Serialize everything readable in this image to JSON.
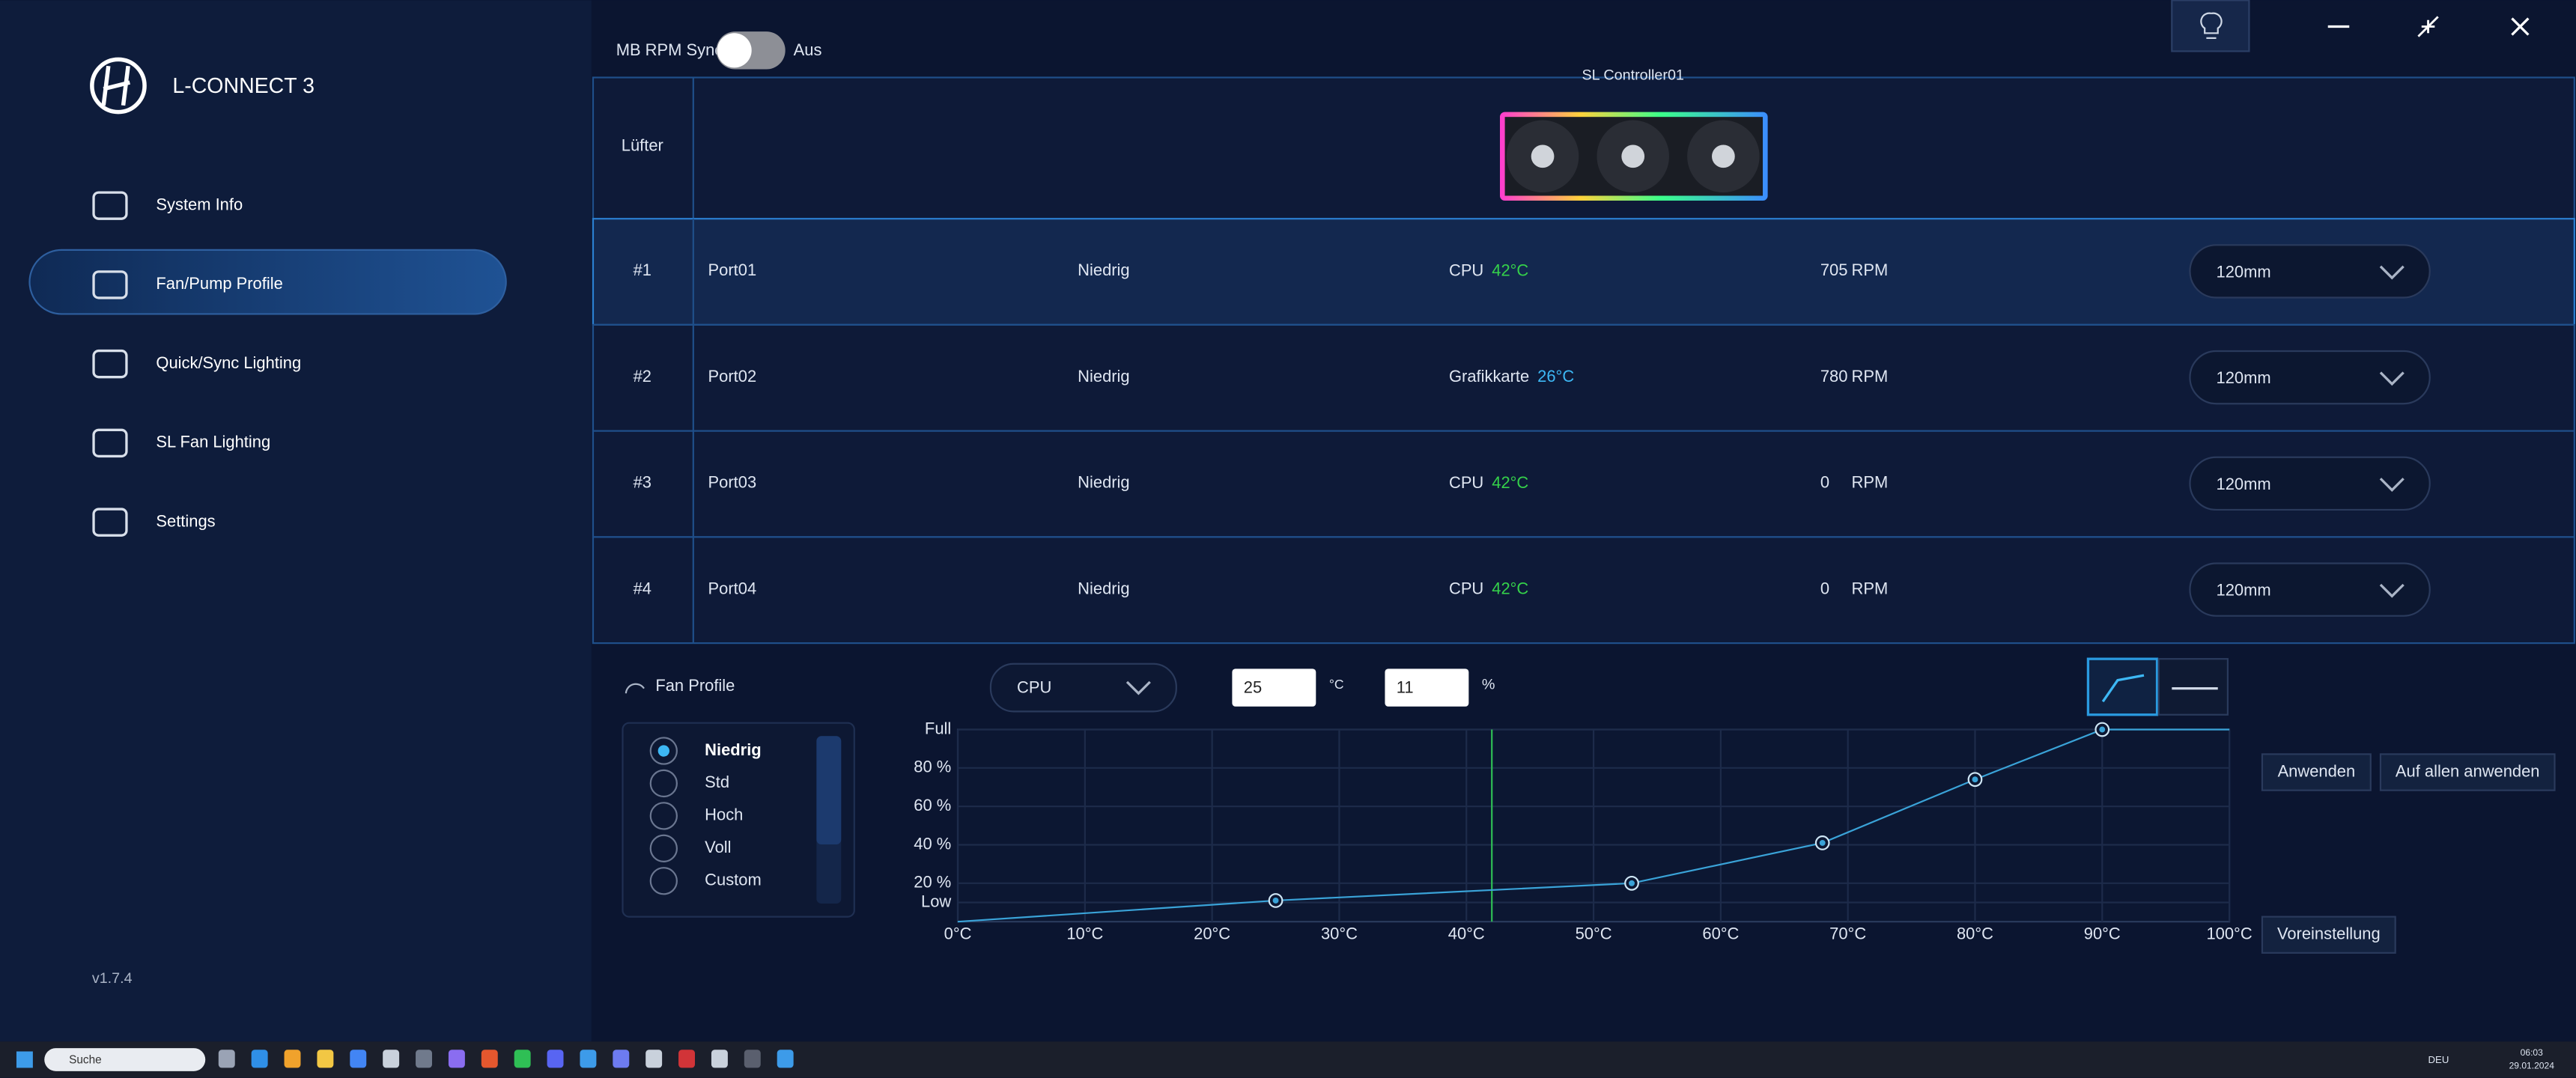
{
  "app": {
    "name": "L-CONNECT 3",
    "version": "v1.7.4"
  },
  "nav": [
    "System Info",
    "Fan/Pump Profile",
    "Quick/Sync Lighting",
    "SL Fan Lighting",
    "Settings"
  ],
  "sync": {
    "label": "MB RPM Sync",
    "state": "Aus"
  },
  "controller": "SL Controller01",
  "table": {
    "header": "Lüfter",
    "rows": [
      {
        "num": "#1",
        "port": "Port01",
        "mode": "Niedrig",
        "sensor": "CPU",
        "temp": "42°C",
        "temp_color": "#35d14a",
        "rpm": "705",
        "unit": "RPM",
        "size": "120mm"
      },
      {
        "num": "#2",
        "port": "Port02",
        "mode": "Niedrig",
        "sensor": "Grafikkarte",
        "temp": "26°C",
        "temp_color": "#3db8f5",
        "rpm": "780",
        "unit": "RPM",
        "size": "120mm"
      },
      {
        "num": "#3",
        "port": "Port03",
        "mode": "Niedrig",
        "sensor": "CPU",
        "temp": "42°C",
        "temp_color": "#35d14a",
        "rpm": "0",
        "unit": "RPM",
        "size": "120mm"
      },
      {
        "num": "#4",
        "port": "Port04",
        "mode": "Niedrig",
        "sensor": "CPU",
        "temp": "42°C",
        "temp_color": "#35d14a",
        "rpm": "0",
        "unit": "RPM",
        "size": "120mm"
      }
    ]
  },
  "profile": {
    "title": "Fan Profile",
    "options": [
      "Niedrig",
      "Std",
      "Hoch",
      "Voll",
      "Custom"
    ],
    "sensor": "CPU",
    "temp_input": "25",
    "temp_unit": "°C",
    "duty_input": "11",
    "duty_unit": "%",
    "buttons": [
      "Anwenden",
      "Auf allen anwenden",
      "Voreinstellung"
    ]
  },
  "chart_data": {
    "type": "line",
    "x": [
      0,
      25,
      53,
      68,
      80,
      90,
      100
    ],
    "values": [
      0,
      11,
      20,
      41,
      74,
      100,
      100
    ],
    "color": "#3aa3d8",
    "current_temp": 42,
    "xlim": [
      0,
      100
    ],
    "ylim": [
      0,
      100
    ],
    "xticks": [
      {
        "value": 0,
        "label": "0°C"
      },
      {
        "value": 10,
        "label": "10°C"
      },
      {
        "value": 20,
        "label": "20°C"
      },
      {
        "value": 30,
        "label": "30°C"
      },
      {
        "value": 40,
        "label": "40°C"
      },
      {
        "value": 50,
        "label": "50°C"
      },
      {
        "value": 60,
        "label": "60°C"
      },
      {
        "value": 70,
        "label": "70°C"
      },
      {
        "value": 80,
        "label": "80°C"
      },
      {
        "value": 90,
        "label": "90°C"
      },
      {
        "value": 100,
        "label": "100°C"
      }
    ],
    "yticks": [
      {
        "value": 10,
        "label": "Low"
      },
      {
        "value": 20,
        "label": "20 %"
      },
      {
        "value": 40,
        "label": "40 %"
      },
      {
        "value": 60,
        "label": "60 %"
      },
      {
        "value": 80,
        "label": "80 %"
      },
      {
        "value": 100,
        "label": "Full"
      }
    ],
    "grid": true
  },
  "taskbar": {
    "search": "Suche",
    "lang": "DEU",
    "time": "06:03",
    "date": "29.01.2024"
  }
}
